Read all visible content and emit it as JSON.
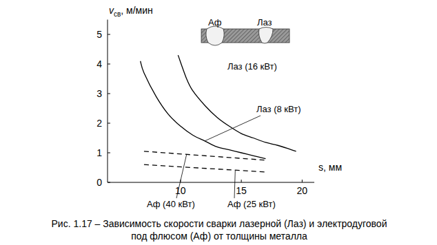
{
  "chart_data": {
    "type": "line",
    "title": [
      "Рис. 1.17 – Зависимость скорости сварки лазерной (Лаз) и электродуговой",
      "под флюсом (Аф) от толщины металла"
    ],
    "y_label": {
      "symbol": "v",
      "subscript": "св",
      "unit": ", м/мин"
    },
    "x_label": "s, мм",
    "annotations": [
      "Аф",
      "Лаз"
    ],
    "xlim": [
      4,
      21
    ],
    "xticks": [
      10,
      15,
      20
    ],
    "ylim": [
      0,
      5.5
    ],
    "yticks": [
      0,
      1,
      2,
      3,
      4,
      5
    ],
    "grid": false,
    "series": [
      {
        "name": "Лаз (16 кВт)",
        "color": "#000000",
        "line_style": "solid",
        "x": [
          9.8,
          10.5,
          11,
          12,
          13,
          14,
          15,
          16,
          17,
          18,
          19,
          19.5
        ],
        "values": [
          4.3,
          3.5,
          3.1,
          2.6,
          2.2,
          1.9,
          1.65,
          1.5,
          1.35,
          1.25,
          1.12,
          1.05
        ]
      },
      {
        "name": "Лаз (8 кВт)",
        "color": "#000000",
        "line_style": "solid",
        "x": [
          6.7,
          7,
          8,
          9,
          10,
          11,
          12,
          13,
          14,
          15,
          16,
          17
        ],
        "values": [
          4.1,
          3.7,
          2.9,
          2.3,
          1.9,
          1.6,
          1.4,
          1.2,
          1.1,
          1.0,
          0.9,
          0.8
        ]
      },
      {
        "name": "Аф (40 кВт)",
        "color": "#000000",
        "line_style": "dashed",
        "x": [
          7,
          17
        ],
        "values": [
          1.05,
          0.75
        ]
      },
      {
        "name": "Аф (25 кВт)",
        "color": "#000000",
        "line_style": "dashed",
        "x": [
          7,
          17
        ],
        "values": [
          0.6,
          0.35
        ]
      }
    ]
  }
}
